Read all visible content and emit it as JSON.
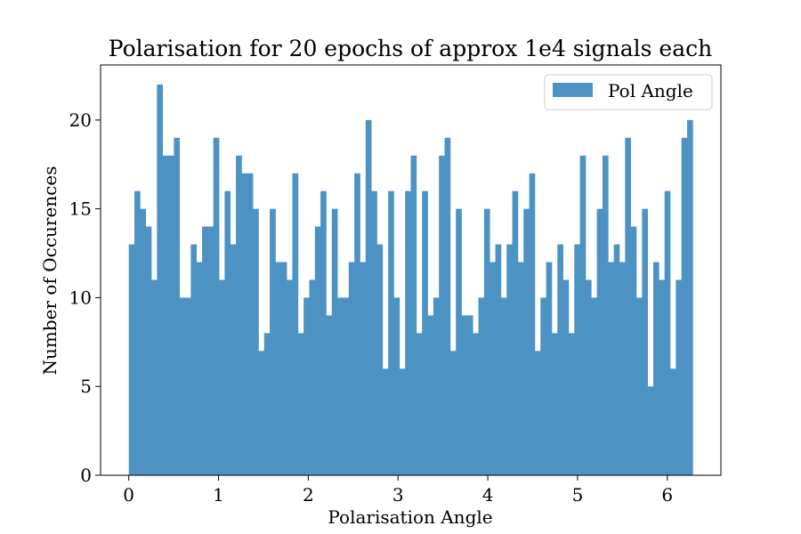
{
  "chart_data": {
    "type": "bar",
    "title": "Polarisation for 20 epochs of approx 1e4 signals each",
    "xlabel": "Polarisation Angle",
    "ylabel": "Number of Occurences",
    "xlim": [
      -0.314,
      6.597
    ],
    "ylim": [
      0,
      23.1
    ],
    "x_ticks": [
      0,
      1,
      2,
      3,
      4,
      5,
      6
    ],
    "y_ticks": [
      0,
      5,
      10,
      15,
      20
    ],
    "x_tick_labels": [
      "0",
      "1",
      "2",
      "3",
      "4",
      "5",
      "6"
    ],
    "y_tick_labels": [
      "0",
      "5",
      "10",
      "15",
      "20"
    ],
    "bin_range": [
      0,
      6.2832
    ],
    "grid": false,
    "legend_position": "top-right",
    "series": [
      {
        "name": "Pol Angle",
        "color": "#4c93c4",
        "values": [
          13,
          16,
          15,
          14,
          11,
          22,
          18,
          18,
          19,
          10,
          10,
          13,
          12,
          14,
          14,
          19,
          11,
          16,
          13,
          18,
          17,
          17,
          15,
          7,
          8,
          15,
          12,
          12,
          11,
          17,
          8,
          10,
          11,
          14,
          16,
          9,
          15,
          10,
          10,
          12,
          17,
          12,
          20,
          16,
          13,
          6,
          16,
          10,
          6,
          16,
          18,
          8,
          16,
          9,
          10,
          18,
          19,
          7,
          15,
          9,
          9,
          8,
          10,
          15,
          12,
          13,
          10,
          13,
          16,
          12,
          15,
          17,
          7,
          10,
          12,
          8,
          13,
          11,
          8,
          13,
          18,
          11,
          10,
          15,
          18,
          12,
          13,
          12,
          19,
          14,
          10,
          15,
          5,
          12,
          11,
          16,
          6,
          11,
          19,
          20
        ]
      }
    ]
  }
}
